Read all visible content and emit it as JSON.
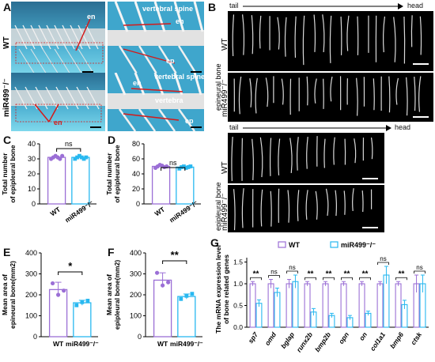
{
  "panels": {
    "A": {
      "letter": "A",
      "genotypes": [
        "WT",
        "miR499⁻/⁻"
      ],
      "labels": {
        "en": "en",
        "ep": "ep",
        "vertebral_spine": "vertebral spine",
        "vertebra": "vertebra"
      }
    },
    "B": {
      "letter": "B",
      "direction_tail": "tail",
      "direction_head": "head",
      "epineural_label": "epineural bone",
      "epipleural_label": "epipleural bone",
      "genotypes": [
        "WT",
        "miR499⁻/⁻"
      ]
    }
  },
  "chart_data": [
    {
      "id": "C",
      "type": "bar",
      "categories": [
        "WT",
        "miR499⁻/⁻"
      ],
      "values": [
        31,
        31
      ],
      "points": [
        [
          30,
          31,
          32,
          31,
          30,
          32
        ],
        [
          30,
          31,
          32,
          31,
          30,
          31
        ]
      ],
      "ylabel": "Total number of epipleural bone",
      "yticks": [
        0,
        10,
        20,
        30,
        40
      ],
      "ylim": [
        0,
        40
      ],
      "significance": "ns"
    },
    {
      "id": "D",
      "type": "bar",
      "categories": [
        "WT",
        "miR499⁻/⁻"
      ],
      "values": [
        50,
        49
      ],
      "points": [
        [
          48,
          50,
          52,
          51,
          49,
          50
        ],
        [
          47,
          49,
          50,
          48,
          49,
          50
        ]
      ],
      "ylabel": "Total number of epipleural bone",
      "yticks": [
        0,
        20,
        40,
        60,
        80
      ],
      "ylim": [
        0,
        80
      ],
      "significance": "ns"
    },
    {
      "id": "E",
      "type": "bar",
      "categories": [
        "WT",
        "miR499⁻/⁻"
      ],
      "values": [
        225,
        162
      ],
      "errors": [
        35,
        12
      ],
      "points": [
        [
          255,
          200,
          220
        ],
        [
          150,
          165,
          172
        ]
      ],
      "ylabel": "Mean area of epineural bone(mm2)",
      "yticks": [
        0,
        100,
        200,
        300,
        400
      ],
      "ylim": [
        0,
        400
      ],
      "significance": "*"
    },
    {
      "id": "F",
      "type": "bar",
      "categories": [
        "WT",
        "miR499⁻/⁻"
      ],
      "values": [
        270,
        192
      ],
      "errors": [
        35,
        12
      ],
      "points": [
        [
          305,
          245,
          260
        ],
        [
          180,
          195,
          205
        ]
      ],
      "ylabel": "Mean area of epipleural bone(mm2)",
      "yticks": [
        0,
        100,
        200,
        300,
        400
      ],
      "ylim": [
        0,
        400
      ],
      "significance": "**"
    },
    {
      "id": "G",
      "type": "bar",
      "categories": [
        "sp7",
        "omd",
        "bglap",
        "runx2b",
        "bmp2b",
        "opn",
        "on",
        "col1a1",
        "bmp6",
        "ctsk"
      ],
      "series": [
        {
          "name": "WT",
          "values": [
            1.0,
            1.0,
            1.0,
            1.0,
            1.0,
            1.0,
            1.0,
            1.0,
            1.0,
            1.0
          ],
          "errors": [
            0.05,
            0.1,
            0.1,
            0.05,
            0.05,
            0.05,
            0.05,
            0.05,
            0.05,
            0.2
          ]
        },
        {
          "name": "miR499⁻/⁻",
          "values": [
            0.55,
            0.8,
            1.05,
            0.35,
            0.27,
            0.22,
            0.32,
            1.2,
            0.52,
            1.0
          ],
          "errors": [
            0.08,
            0.1,
            0.15,
            0.08,
            0.05,
            0.05,
            0.05,
            0.2,
            0.1,
            0.2
          ]
        }
      ],
      "significance": [
        "**",
        "ns",
        "ns",
        "**",
        "**",
        "**",
        "**",
        "ns",
        "**",
        "ns"
      ],
      "ylabel": "The mRNA expression level of bone related genes",
      "yticks": [
        0.0,
        0.5,
        1.0,
        1.5
      ],
      "ylim": [
        0,
        1.6
      ]
    }
  ],
  "colors": {
    "wt": "#9b6fd6",
    "ko": "#28b8f0",
    "red": "#d41a1a"
  }
}
